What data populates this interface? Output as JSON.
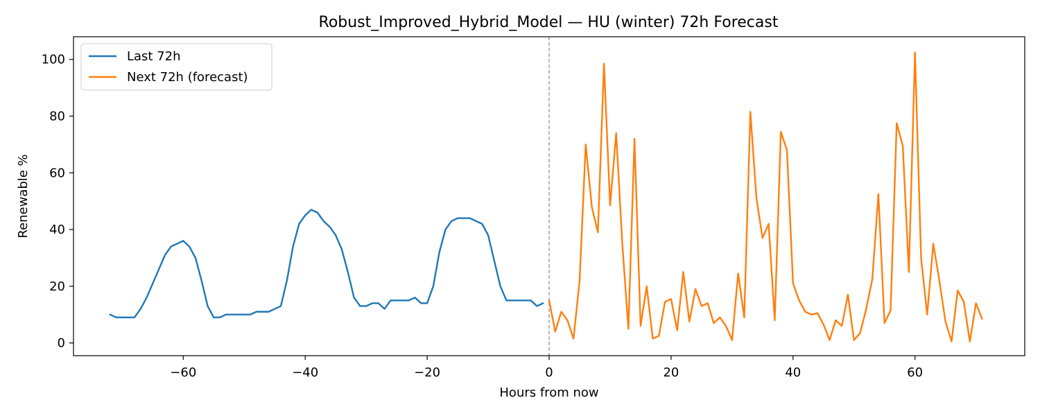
{
  "chart_data": {
    "type": "line",
    "title": "Robust_Improved_Hybrid_Model — HU (winter) 72h Forecast",
    "xlabel": "Hours from now",
    "ylabel": "Renewable %",
    "xlim": [
      -78,
      78
    ],
    "ylim": [
      -4.5,
      108
    ],
    "xticks": [
      -60,
      -40,
      -20,
      0,
      20,
      40,
      60
    ],
    "yticks": [
      0,
      20,
      40,
      60,
      80,
      100
    ],
    "grid": false,
    "legend_position": "upper-left",
    "vline": {
      "x": 0,
      "style": "dashed",
      "color": "#999999"
    },
    "series": [
      {
        "name": "Last 72h",
        "color": "#1f77b4",
        "x": [
          -72,
          -71,
          -70,
          -69,
          -68,
          -67,
          -66,
          -65,
          -64,
          -63,
          -62,
          -61,
          -60,
          -59,
          -58,
          -57,
          -56,
          -55,
          -54,
          -53,
          -52,
          -51,
          -50,
          -49,
          -48,
          -47,
          -46,
          -45,
          -44,
          -43,
          -42,
          -41,
          -40,
          -39,
          -38,
          -37,
          -36,
          -35,
          -34,
          -33,
          -32,
          -31,
          -30,
          -29,
          -28,
          -27,
          -26,
          -25,
          -24,
          -23,
          -22,
          -21,
          -20,
          -19,
          -18,
          -17,
          -16,
          -15,
          -14,
          -13,
          -12,
          -11,
          -10,
          -9,
          -8,
          -7,
          -6,
          -5,
          -4,
          -3,
          -2,
          -1
        ],
        "y": [
          10,
          9,
          9,
          9,
          9,
          12,
          16,
          21,
          26,
          31,
          34,
          35,
          36,
          34,
          30,
          22,
          13,
          9,
          9,
          10,
          10,
          10,
          10,
          10,
          11,
          11,
          11,
          12,
          13,
          22,
          34,
          42,
          45,
          47,
          46,
          43,
          41,
          38,
          33,
          25,
          16,
          13,
          13,
          14,
          14,
          12,
          15,
          15,
          15,
          15,
          16,
          14,
          14,
          20,
          32,
          40,
          43,
          44,
          44,
          44,
          43,
          42,
          38,
          29,
          20,
          15,
          15,
          15,
          15,
          15,
          13,
          14
        ]
      },
      {
        "name": "Next 72h (forecast)",
        "color": "#ff7f0e",
        "x": [
          0,
          1,
          2,
          3,
          4,
          5,
          6,
          7,
          8,
          9,
          10,
          11,
          12,
          13,
          14,
          15,
          16,
          17,
          18,
          19,
          20,
          21,
          22,
          23,
          24,
          25,
          26,
          27,
          28,
          29,
          30,
          31,
          32,
          33,
          34,
          35,
          36,
          37,
          38,
          39,
          40,
          41,
          42,
          43,
          44,
          45,
          46,
          47,
          48,
          49,
          50,
          51,
          52,
          53,
          54,
          55,
          56,
          57,
          58,
          59,
          60,
          61,
          62,
          63,
          64,
          65,
          66,
          67,
          68,
          69,
          70,
          71
        ],
        "y": [
          15,
          4,
          11,
          8,
          1.5,
          22,
          70,
          48,
          39,
          98.5,
          48.5,
          74,
          35,
          5,
          72,
          6,
          20,
          1.5,
          2.5,
          14.5,
          15.5,
          4.5,
          25,
          7.5,
          19,
          13,
          14,
          7,
          9,
          6,
          1,
          24.5,
          9,
          81.5,
          51,
          37,
          42,
          8,
          74.5,
          68,
          21,
          15,
          11,
          10,
          10.5,
          6.5,
          1,
          8,
          6,
          17,
          1,
          3.5,
          12,
          22.5,
          52.5,
          7,
          11.5,
          77.5,
          69.5,
          25,
          102.5,
          30,
          10,
          35,
          22,
          7.5,
          0.5,
          18.5,
          14.5,
          0.5,
          14,
          8.5
        ]
      }
    ]
  }
}
